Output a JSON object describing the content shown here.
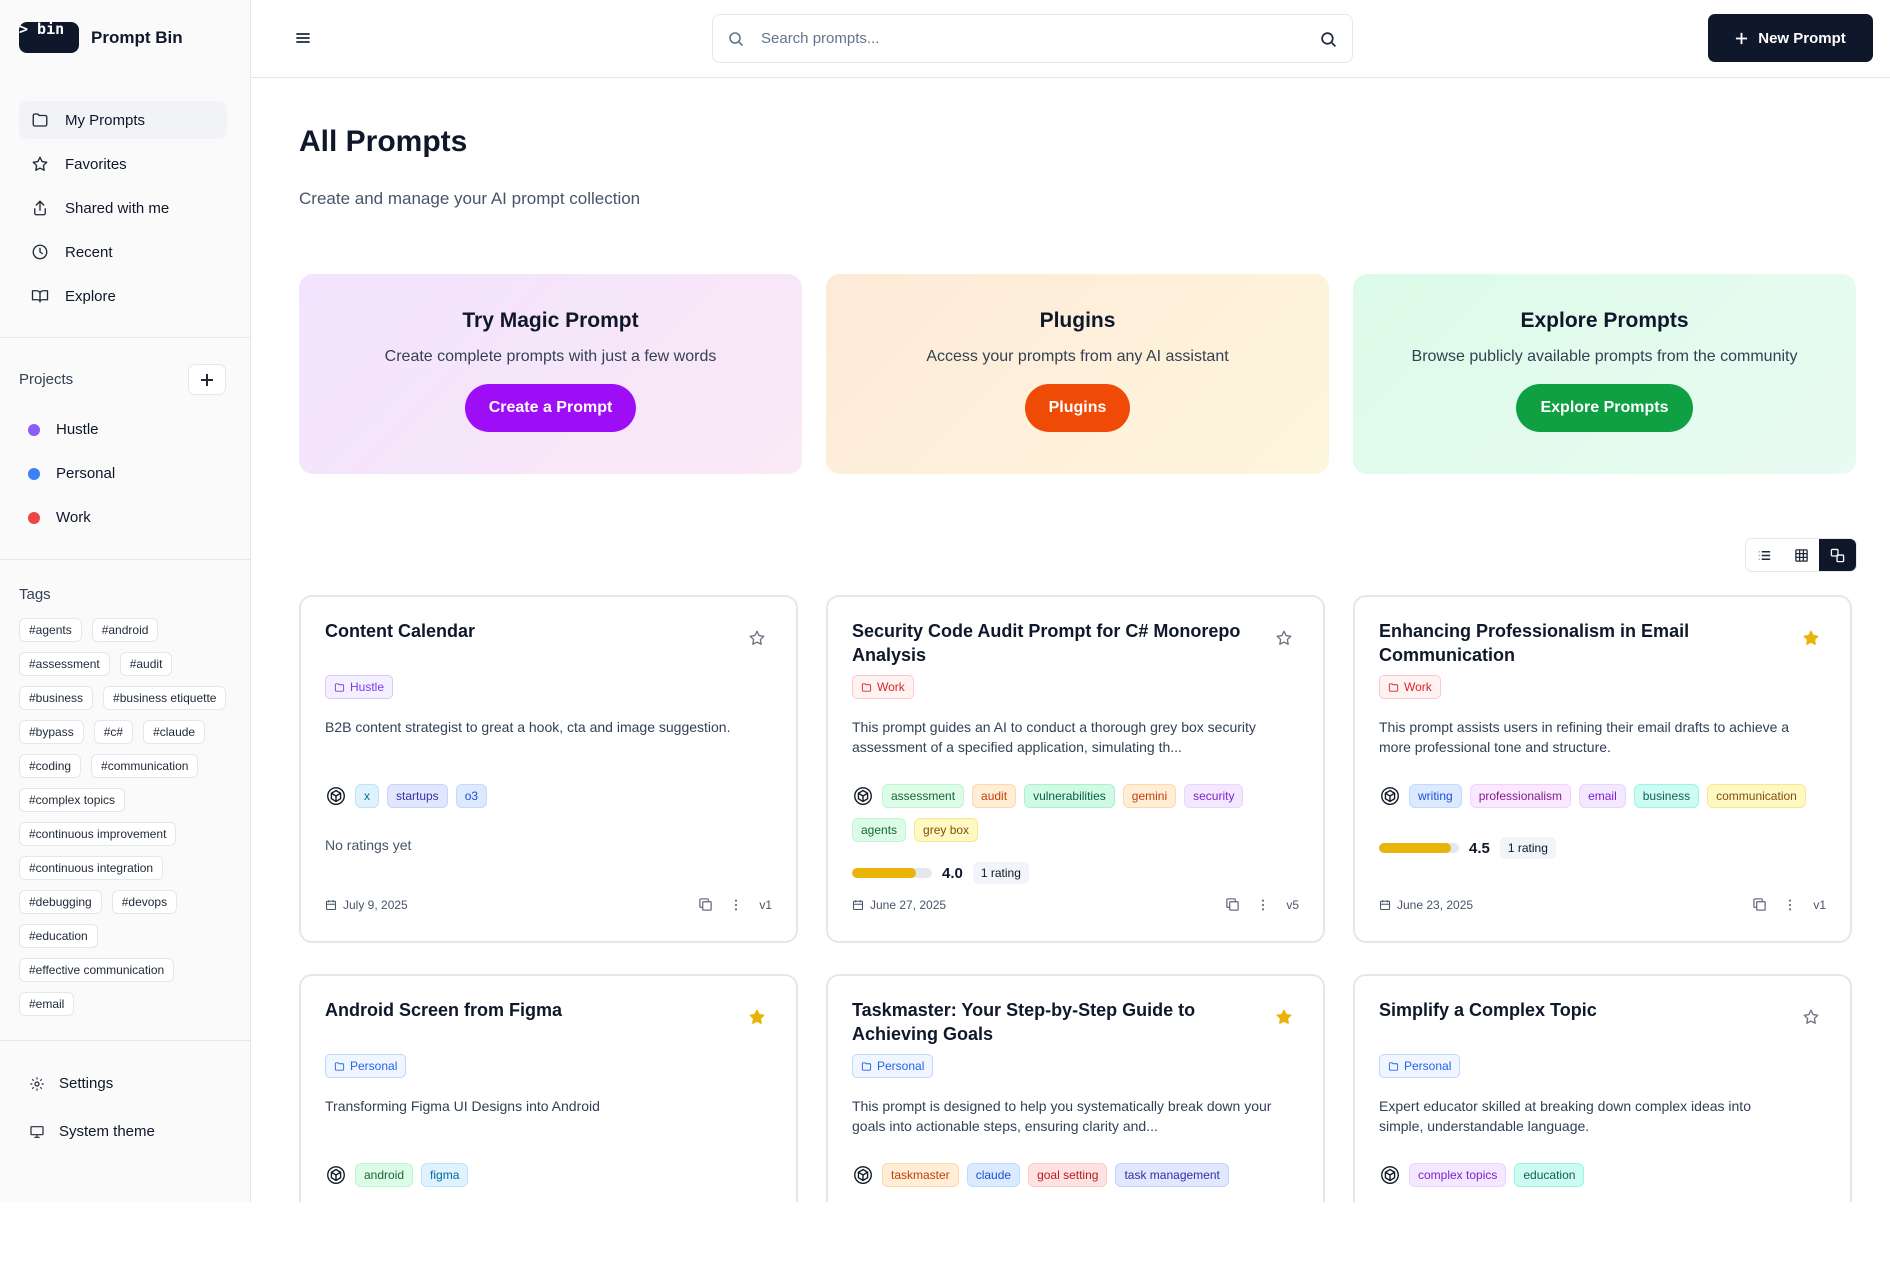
{
  "brand": {
    "logo": "> bin _",
    "name": "Prompt Bin"
  },
  "nav": [
    {
      "label": "My Prompts",
      "icon": "folder-icon"
    },
    {
      "label": "Favorites",
      "icon": "star-icon"
    },
    {
      "label": "Shared with me",
      "icon": "share-icon"
    },
    {
      "label": "Recent",
      "icon": "clock-icon"
    },
    {
      "label": "Explore",
      "icon": "book-icon"
    }
  ],
  "projects": {
    "title": "Projects",
    "items": [
      {
        "label": "Hustle",
        "color": "#8b5cf6"
      },
      {
        "label": "Personal",
        "color": "#3b82f6"
      },
      {
        "label": "Work",
        "color": "#ef4444"
      }
    ]
  },
  "tags": {
    "title": "Tags",
    "items": [
      "#agents",
      "#android",
      "#assessment",
      "#audit",
      "#business",
      "#business etiquette",
      "#bypass",
      "#c#",
      "#claude",
      "#coding",
      "#communication",
      "#complex topics",
      "#continuous improvement",
      "#continuous integration",
      "#debugging",
      "#devops",
      "#education",
      "#effective communication",
      "#email"
    ]
  },
  "bottom": {
    "settings": "Settings",
    "theme": "System theme"
  },
  "header": {
    "search_placeholder": "Search prompts...",
    "new_button": "New Prompt"
  },
  "page": {
    "title": "All Prompts",
    "subtitle": "Create and manage your AI prompt collection"
  },
  "promos": [
    {
      "title": "Try Magic Prompt",
      "text": "Create complete prompts with just a few words",
      "button": "Create a Prompt",
      "color": "#9d0df5"
    },
    {
      "title": "Plugins",
      "text": "Access your prompts from any AI assistant",
      "button": "Plugins",
      "color": "#f04a07"
    },
    {
      "title": "Explore Prompts",
      "text": "Browse publicly available prompts from the community",
      "button": "Explore Prompts",
      "color": "#0ea042"
    }
  ],
  "cards": [
    {
      "title": "Content Calendar",
      "favorite": false,
      "project": "Hustle",
      "desc": "B2B content strategist to great a hook, cta and image suggestion.",
      "tags": [
        "x",
        "startups",
        "o3"
      ],
      "rating": null,
      "no_rating_text": "No ratings yet",
      "date": "July 9, 2025",
      "version": "v1"
    },
    {
      "title": "Security Code Audit Prompt for C# Monorepo Analysis",
      "favorite": false,
      "project": "Work",
      "desc": "This prompt guides an AI to conduct a thorough grey box security assessment of a specified application, simulating th...",
      "tags": [
        "assessment",
        "audit",
        "vulnerabilities",
        "gemini",
        "security",
        "agents",
        "grey box"
      ],
      "rating": "4.0",
      "rating_pct": 0.8,
      "rating_count": "1 rating",
      "date": "June 27, 2025",
      "version": "v5"
    },
    {
      "title": "Enhancing Professionalism in Email Communication",
      "favorite": true,
      "project": "Work",
      "desc": "This prompt assists users in refining their email drafts to achieve a more professional tone and structure.",
      "tags": [
        "writing",
        "professionalism",
        "email",
        "business",
        "communication"
      ],
      "rating": "4.5",
      "rating_pct": 0.9,
      "rating_count": "1 rating",
      "date": "June 23, 2025",
      "version": "v1"
    },
    {
      "title": "Android Screen from Figma",
      "favorite": true,
      "project": "Personal",
      "desc": "Transforming Figma UI Designs into Android",
      "tags": [
        "android",
        "figma"
      ]
    },
    {
      "title": "Taskmaster: Your Step-by-Step Guide to Achieving Goals",
      "favorite": true,
      "project": "Personal",
      "desc": "This prompt is designed to help you systematically break down your goals into actionable steps, ensuring clarity and...",
      "tags": [
        "taskmaster",
        "claude",
        "goal setting",
        "task management"
      ]
    },
    {
      "title": "Simplify a Complex Topic",
      "favorite": false,
      "project": "Personal",
      "desc": "Expert educator skilled at breaking down complex ideas into simple, understandable language.",
      "tags": [
        "complex topics",
        "education"
      ]
    }
  ],
  "colors": {
    "star_active": "#eab308",
    "accent": "#0f172a"
  }
}
